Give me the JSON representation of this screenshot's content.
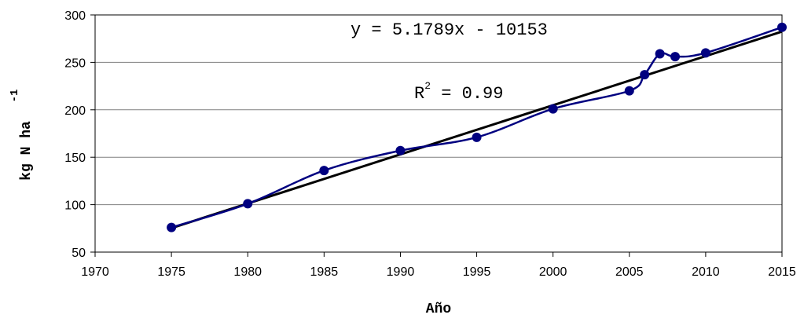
{
  "chart_data": {
    "type": "line",
    "title": "",
    "xlabel": "Año",
    "ylabel": "kg N ha",
    "ylabel_superscript": "-1",
    "xlim": [
      1970,
      2015
    ],
    "ylim": [
      50,
      300
    ],
    "x_ticks": [
      1970,
      1975,
      1980,
      1985,
      1990,
      1995,
      2000,
      2005,
      2010,
      2015
    ],
    "y_ticks": [
      50,
      100,
      150,
      200,
      250,
      300
    ],
    "grid": "horizontal",
    "legend": "none",
    "colors": {
      "series": "#000080",
      "trendline": "#000000",
      "grid": "#808080"
    },
    "series": [
      {
        "x": [
          1975,
          1980,
          1985,
          1990,
          1995,
          2000,
          2005,
          2006,
          2007,
          2008,
          2010,
          2015
        ],
        "values": [
          76,
          101,
          136,
          157,
          171,
          201,
          220,
          237,
          259,
          256,
          260,
          287
        ],
        "smooth": true,
        "marker": "circle"
      }
    ],
    "trendline": {
      "type": "linear",
      "slope": 5.1789,
      "intercept": -10153,
      "x_range": [
        1975,
        2015
      ]
    },
    "annotations": {
      "equation_prefix": "y = ",
      "equation_rest": "5.1789x - 10153",
      "r2_base": "R",
      "r2_sup": "2",
      "r2_rest": " = 0.99"
    }
  }
}
